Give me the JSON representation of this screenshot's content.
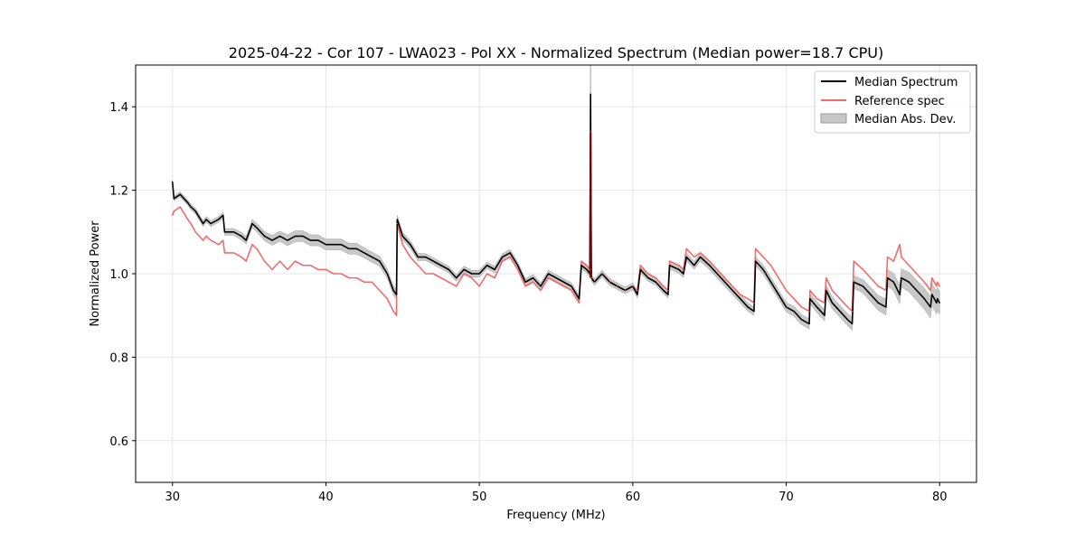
{
  "chart_data": {
    "type": "line",
    "title": "2025-04-22 - Cor 107 - LWA023 - Pol XX - Normalized Spectrum (Median power=18.7 CPU)",
    "xlabel": "Frequency (MHz)",
    "ylabel": "Normalized Power",
    "xlim": [
      27.6,
      82.4
    ],
    "ylim": [
      0.5,
      1.5
    ],
    "xticks": [
      30,
      40,
      50,
      60,
      70,
      80
    ],
    "yticks": [
      0.6,
      0.8,
      1.0,
      1.2,
      1.4
    ],
    "xtick_labels": [
      "30",
      "40",
      "50",
      "60",
      "70",
      "80"
    ],
    "ytick_labels": [
      "0.6",
      "0.8",
      "1.0",
      "1.2",
      "1.4"
    ],
    "grid": true,
    "legend_position": "top-right",
    "legend": [
      "Median Spectrum",
      "Reference spec",
      "Median Abs. Dev."
    ],
    "colors": {
      "median": "#000000",
      "reference": "#f26b6b",
      "mad": "#c8c8c8",
      "spike_overlap": "#8b0000"
    },
    "x": [
      30.0,
      30.1,
      30.5,
      31.0,
      31.2,
      31.5,
      32.0,
      32.2,
      32.5,
      33.0,
      33.3,
      33.4,
      34.0,
      34.5,
      34.8,
      35.2,
      35.5,
      36.0,
      36.5,
      37.0,
      37.5,
      38.0,
      38.5,
      39.0,
      39.5,
      40.0,
      40.5,
      41.0,
      41.5,
      42.0,
      42.5,
      43.0,
      43.5,
      44.0,
      44.4,
      44.6,
      44.65,
      45.0,
      45.5,
      46.0,
      46.5,
      47.0,
      47.5,
      48.0,
      48.5,
      49.0,
      49.5,
      50.0,
      50.5,
      51.0,
      51.5,
      52.0,
      52.5,
      53.0,
      53.5,
      54.0,
      54.5,
      55.0,
      55.5,
      56.0,
      56.5,
      56.65,
      57.0,
      57.2,
      57.25,
      57.3,
      57.5,
      58.0,
      58.5,
      59.0,
      59.5,
      60.0,
      60.3,
      60.5,
      61.0,
      61.5,
      62.0,
      62.3,
      62.4,
      63.0,
      63.3,
      63.5,
      64.0,
      64.4,
      65.0,
      65.5,
      66.0,
      66.5,
      67.0,
      67.5,
      67.9,
      68.0,
      68.5,
      69.0,
      69.5,
      70.0,
      70.5,
      71.0,
      71.5,
      71.55,
      72.0,
      72.5,
      72.6,
      73.0,
      73.5,
      74.0,
      74.3,
      74.4,
      75.0,
      75.5,
      76.0,
      76.5,
      76.6,
      77.0,
      77.4,
      77.5,
      78.0,
      78.5,
      79.0,
      79.4,
      79.5,
      79.8,
      79.85,
      80.0
    ],
    "series": [
      {
        "name": "Median Spectrum",
        "values": [
          1.22,
          1.18,
          1.19,
          1.17,
          1.16,
          1.15,
          1.12,
          1.13,
          1.12,
          1.13,
          1.14,
          1.1,
          1.1,
          1.09,
          1.08,
          1.12,
          1.11,
          1.09,
          1.08,
          1.09,
          1.08,
          1.09,
          1.09,
          1.08,
          1.08,
          1.07,
          1.07,
          1.07,
          1.06,
          1.06,
          1.05,
          1.04,
          1.03,
          1.0,
          0.96,
          0.95,
          1.13,
          1.09,
          1.07,
          1.04,
          1.04,
          1.03,
          1.02,
          1.01,
          0.99,
          1.01,
          1.0,
          1.0,
          1.02,
          1.01,
          1.04,
          1.05,
          1.02,
          0.98,
          0.99,
          0.97,
          1.0,
          0.99,
          0.98,
          0.97,
          0.94,
          1.02,
          1.01,
          1.0,
          1.43,
          0.99,
          0.98,
          1.0,
          0.98,
          0.97,
          0.96,
          0.97,
          0.95,
          1.01,
          0.99,
          0.98,
          0.96,
          0.95,
          1.02,
          1.01,
          1.0,
          1.04,
          1.02,
          1.04,
          1.02,
          1.0,
          0.98,
          0.96,
          0.94,
          0.92,
          0.91,
          1.03,
          1.01,
          0.98,
          0.95,
          0.92,
          0.91,
          0.89,
          0.88,
          0.94,
          0.92,
          0.9,
          0.96,
          0.93,
          0.91,
          0.89,
          0.88,
          0.98,
          0.97,
          0.95,
          0.93,
          0.92,
          0.99,
          0.98,
          0.95,
          0.99,
          0.98,
          0.96,
          0.94,
          0.92,
          0.95,
          0.93,
          0.94,
          0.93
        ]
      },
      {
        "name": "Reference spec",
        "values": [
          1.14,
          1.15,
          1.16,
          1.13,
          1.12,
          1.1,
          1.08,
          1.09,
          1.08,
          1.07,
          1.08,
          1.05,
          1.05,
          1.04,
          1.03,
          1.07,
          1.06,
          1.03,
          1.01,
          1.03,
          1.01,
          1.03,
          1.02,
          1.02,
          1.01,
          1.01,
          1.0,
          1.0,
          0.99,
          0.99,
          0.98,
          0.98,
          0.96,
          0.94,
          0.91,
          0.9,
          1.12,
          1.07,
          1.04,
          1.02,
          1.0,
          1.0,
          0.99,
          0.98,
          0.97,
          1.0,
          0.99,
          0.97,
          1.0,
          0.99,
          1.03,
          1.04,
          1.01,
          0.97,
          0.98,
          0.96,
          0.99,
          0.98,
          0.97,
          0.96,
          0.93,
          1.03,
          1.02,
          1.01,
          1.34,
          0.99,
          0.98,
          1.0,
          0.98,
          0.97,
          0.96,
          0.97,
          0.96,
          1.02,
          1.0,
          0.99,
          0.97,
          0.96,
          1.03,
          1.02,
          1.01,
          1.06,
          1.04,
          1.05,
          1.03,
          1.01,
          0.99,
          0.97,
          0.95,
          0.94,
          0.93,
          1.06,
          1.04,
          1.02,
          0.99,
          0.96,
          0.94,
          0.92,
          0.91,
          0.96,
          0.94,
          0.93,
          0.99,
          0.96,
          0.94,
          0.92,
          0.91,
          1.03,
          1.01,
          0.99,
          0.97,
          0.96,
          1.04,
          1.03,
          1.07,
          1.04,
          1.02,
          1.0,
          0.98,
          0.96,
          0.99,
          0.97,
          0.98,
          0.97
        ]
      }
    ],
    "mad": [
      0.005,
      0.005,
      0.006,
      0.006,
      0.006,
      0.007,
      0.007,
      0.007,
      0.007,
      0.007,
      0.007,
      0.008,
      0.008,
      0.009,
      0.009,
      0.01,
      0.01,
      0.011,
      0.012,
      0.012,
      0.013,
      0.013,
      0.013,
      0.013,
      0.013,
      0.013,
      0.013,
      0.013,
      0.013,
      0.013,
      0.012,
      0.012,
      0.012,
      0.011,
      0.011,
      0.011,
      0.01,
      0.009,
      0.009,
      0.009,
      0.008,
      0.008,
      0.008,
      0.008,
      0.008,
      0.008,
      0.008,
      0.008,
      0.008,
      0.008,
      0.008,
      0.008,
      0.008,
      0.008,
      0.008,
      0.008,
      0.008,
      0.008,
      0.008,
      0.008,
      0.008,
      0.008,
      0.008,
      0.008,
      0.07,
      0.008,
      0.008,
      0.008,
      0.008,
      0.008,
      0.008,
      0.008,
      0.008,
      0.008,
      0.008,
      0.008,
      0.008,
      0.008,
      0.009,
      0.009,
      0.009,
      0.009,
      0.009,
      0.01,
      0.01,
      0.01,
      0.01,
      0.01,
      0.01,
      0.01,
      0.01,
      0.01,
      0.011,
      0.011,
      0.011,
      0.011,
      0.012,
      0.012,
      0.012,
      0.012,
      0.013,
      0.013,
      0.013,
      0.014,
      0.014,
      0.014,
      0.015,
      0.015,
      0.016,
      0.017,
      0.018,
      0.019,
      0.02,
      0.021,
      0.022,
      0.022,
      0.023,
      0.024,
      0.025,
      0.026,
      0.026,
      0.027,
      0.027,
      0.027
    ]
  }
}
